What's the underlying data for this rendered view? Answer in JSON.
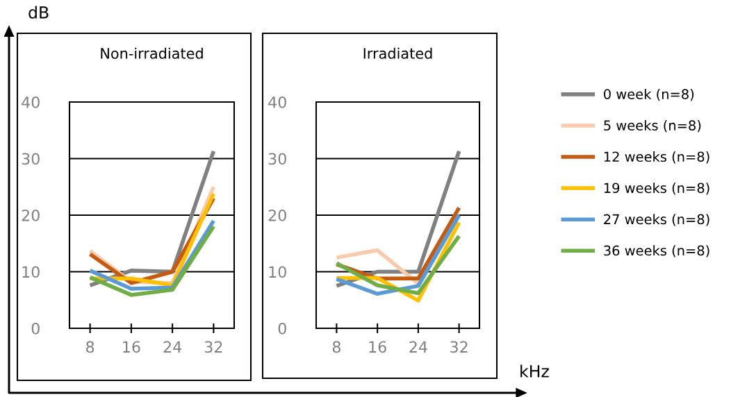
{
  "chart_data": [
    {
      "type": "line",
      "title": "Non-irradiated",
      "ylabel": "dB",
      "x": [
        8,
        16,
        24,
        32
      ],
      "xlim": [
        4,
        36
      ],
      "xticks": [
        8,
        16,
        24,
        32
      ],
      "ylim": [
        0,
        40
      ],
      "yticks": [
        0,
        10,
        20,
        30,
        40
      ],
      "grid": "y",
      "marker": "none",
      "line_style": "solid",
      "series": [
        {
          "color": "#808080",
          "values": [
            7.6,
            10.2,
            10,
            31.3
          ]
        },
        {
          "color": "#f8cbad",
          "values": [
            13.7,
            8.2,
            8,
            25
          ]
        },
        {
          "color": "#c55a11",
          "values": [
            13.1,
            8.0,
            10,
            23
          ]
        },
        {
          "color": "#ffc000",
          "values": [
            8.8,
            8.8,
            7.6,
            23.8
          ]
        },
        {
          "color": "#5b9bd5",
          "values": [
            10.2,
            7.0,
            7.2,
            19
          ]
        },
        {
          "color": "#70ad47",
          "values": [
            9.0,
            5.9,
            6.8,
            18
          ]
        }
      ]
    },
    {
      "type": "line",
      "title": "Irradiated",
      "xlabel": "kHz",
      "x": [
        8,
        16,
        24,
        32
      ],
      "xlim": [
        4,
        36
      ],
      "xticks": [
        8,
        16,
        24,
        32
      ],
      "ylim": [
        0,
        40
      ],
      "yticks": [
        0,
        10,
        20,
        30,
        40
      ],
      "grid": "y",
      "legend": "right",
      "marker": "none",
      "line_style": "solid",
      "series": [
        {
          "name": "0 week (n=8)",
          "color": "#808080",
          "values": [
            7.5,
            10,
            10,
            31.3
          ]
        },
        {
          "name": "5 weeks (n=8)",
          "color": "#f8cbad",
          "values": [
            12.5,
            13.8,
            7.9,
            20
          ]
        },
        {
          "name": "12 weeks (n=8)",
          "color": "#c55a11",
          "values": [
            11.3,
            8.8,
            8.8,
            21.3
          ]
        },
        {
          "name": "19 weeks (n=8)",
          "color": "#ffc000",
          "values": [
            8.9,
            8.9,
            4.9,
            18.7
          ]
        },
        {
          "name": "27 weeks (n=8)",
          "color": "#5b9bd5",
          "values": [
            8.7,
            6.1,
            7.5,
            20
          ]
        },
        {
          "name": "36 weeks (n=8)",
          "color": "#70ad47",
          "values": [
            11.5,
            7.6,
            6.2,
            16.3
          ]
        }
      ]
    }
  ]
}
